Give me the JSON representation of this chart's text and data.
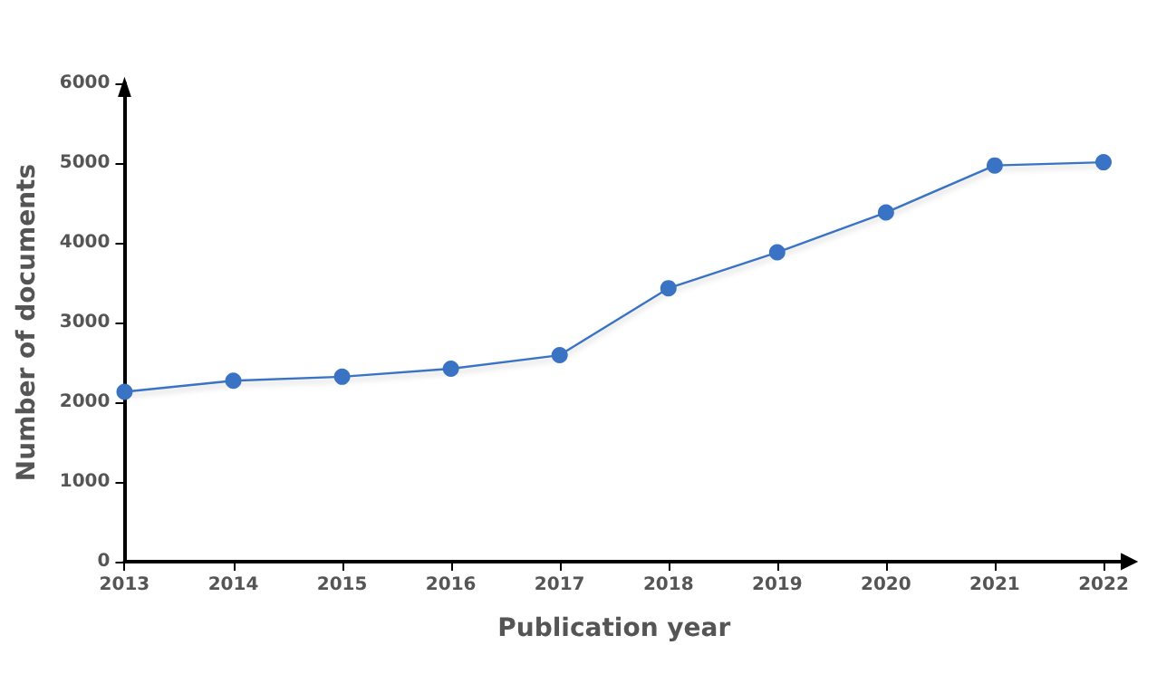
{
  "chart_data": {
    "type": "line",
    "xlabel": "Publication year",
    "ylabel": "Number of documents",
    "categories": [
      "2013",
      "2014",
      "2015",
      "2016",
      "2017",
      "2018",
      "2019",
      "2020",
      "2021",
      "2022"
    ],
    "series": [
      {
        "color": "#3a73c4",
        "values": [
          2130,
          2270,
          2320,
          2420,
          2590,
          3430,
          3880,
          4380,
          4970,
          5010
        ]
      }
    ],
    "ylim": [
      0,
      6000
    ],
    "yticks": [
      0,
      1000,
      2000,
      3000,
      4000,
      5000,
      6000
    ],
    "grid": false,
    "marker": "circle",
    "line_style": "solid"
  }
}
